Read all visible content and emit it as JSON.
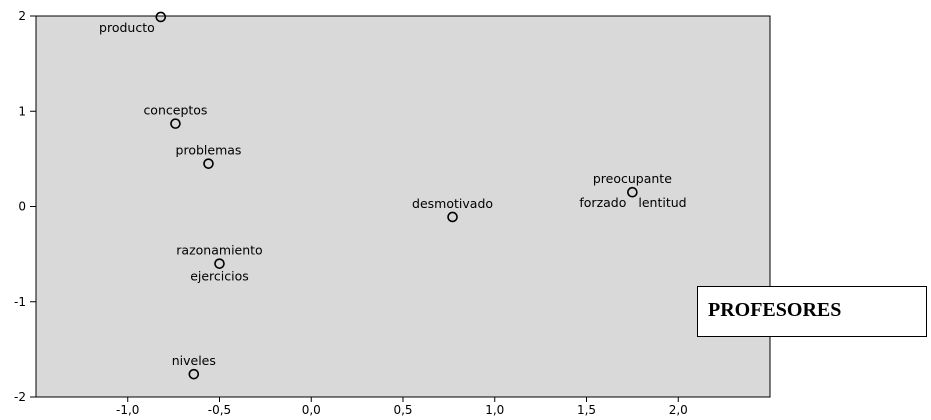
{
  "caption": "PROFESORES",
  "chart_data": {
    "type": "scatter",
    "title": "",
    "xlabel": "",
    "ylabel": "",
    "xlim": [
      -1.5,
      2.5
    ],
    "ylim": [
      -2,
      2
    ],
    "xticks": [
      -1.0,
      -0.5,
      0.0,
      0.5,
      1.0,
      1.5,
      2.0
    ],
    "xtick_labels": [
      "-1,0",
      "-0,5",
      "0,0",
      "0,5",
      "1,0",
      "1,5",
      "2,0"
    ],
    "yticks": [
      -2,
      -1,
      0,
      1,
      2
    ],
    "ytick_labels": [
      "-2",
      "-1",
      "0",
      "1",
      "2"
    ],
    "grid": false,
    "background": "#d9d9d9",
    "points": [
      {
        "label": "producto",
        "x": -0.82,
        "y": 1.99,
        "label_pos": "below-left"
      },
      {
        "label": "conceptos",
        "x": -0.74,
        "y": 0.87,
        "label_pos": "above"
      },
      {
        "label": "problemas",
        "x": -0.56,
        "y": 0.45,
        "label_pos": "above"
      },
      {
        "label": "razonamiento",
        "x": -0.5,
        "y": -0.6,
        "label_pos": "above"
      },
      {
        "label": "ejercicios",
        "x": -0.5,
        "y": -0.6,
        "label_pos": "below"
      },
      {
        "label": "niveles",
        "x": -0.64,
        "y": -1.76,
        "label_pos": "above"
      },
      {
        "label": "desmotivado",
        "x": 0.77,
        "y": -0.11,
        "label_pos": "above"
      },
      {
        "label": "preocupante",
        "x": 1.75,
        "y": 0.15,
        "label_pos": "above"
      },
      {
        "label": "forzado",
        "x": 1.75,
        "y": 0.15,
        "label_pos": "below-left"
      },
      {
        "label": "lentitud",
        "x": 1.75,
        "y": 0.15,
        "label_pos": "below-right"
      }
    ]
  }
}
